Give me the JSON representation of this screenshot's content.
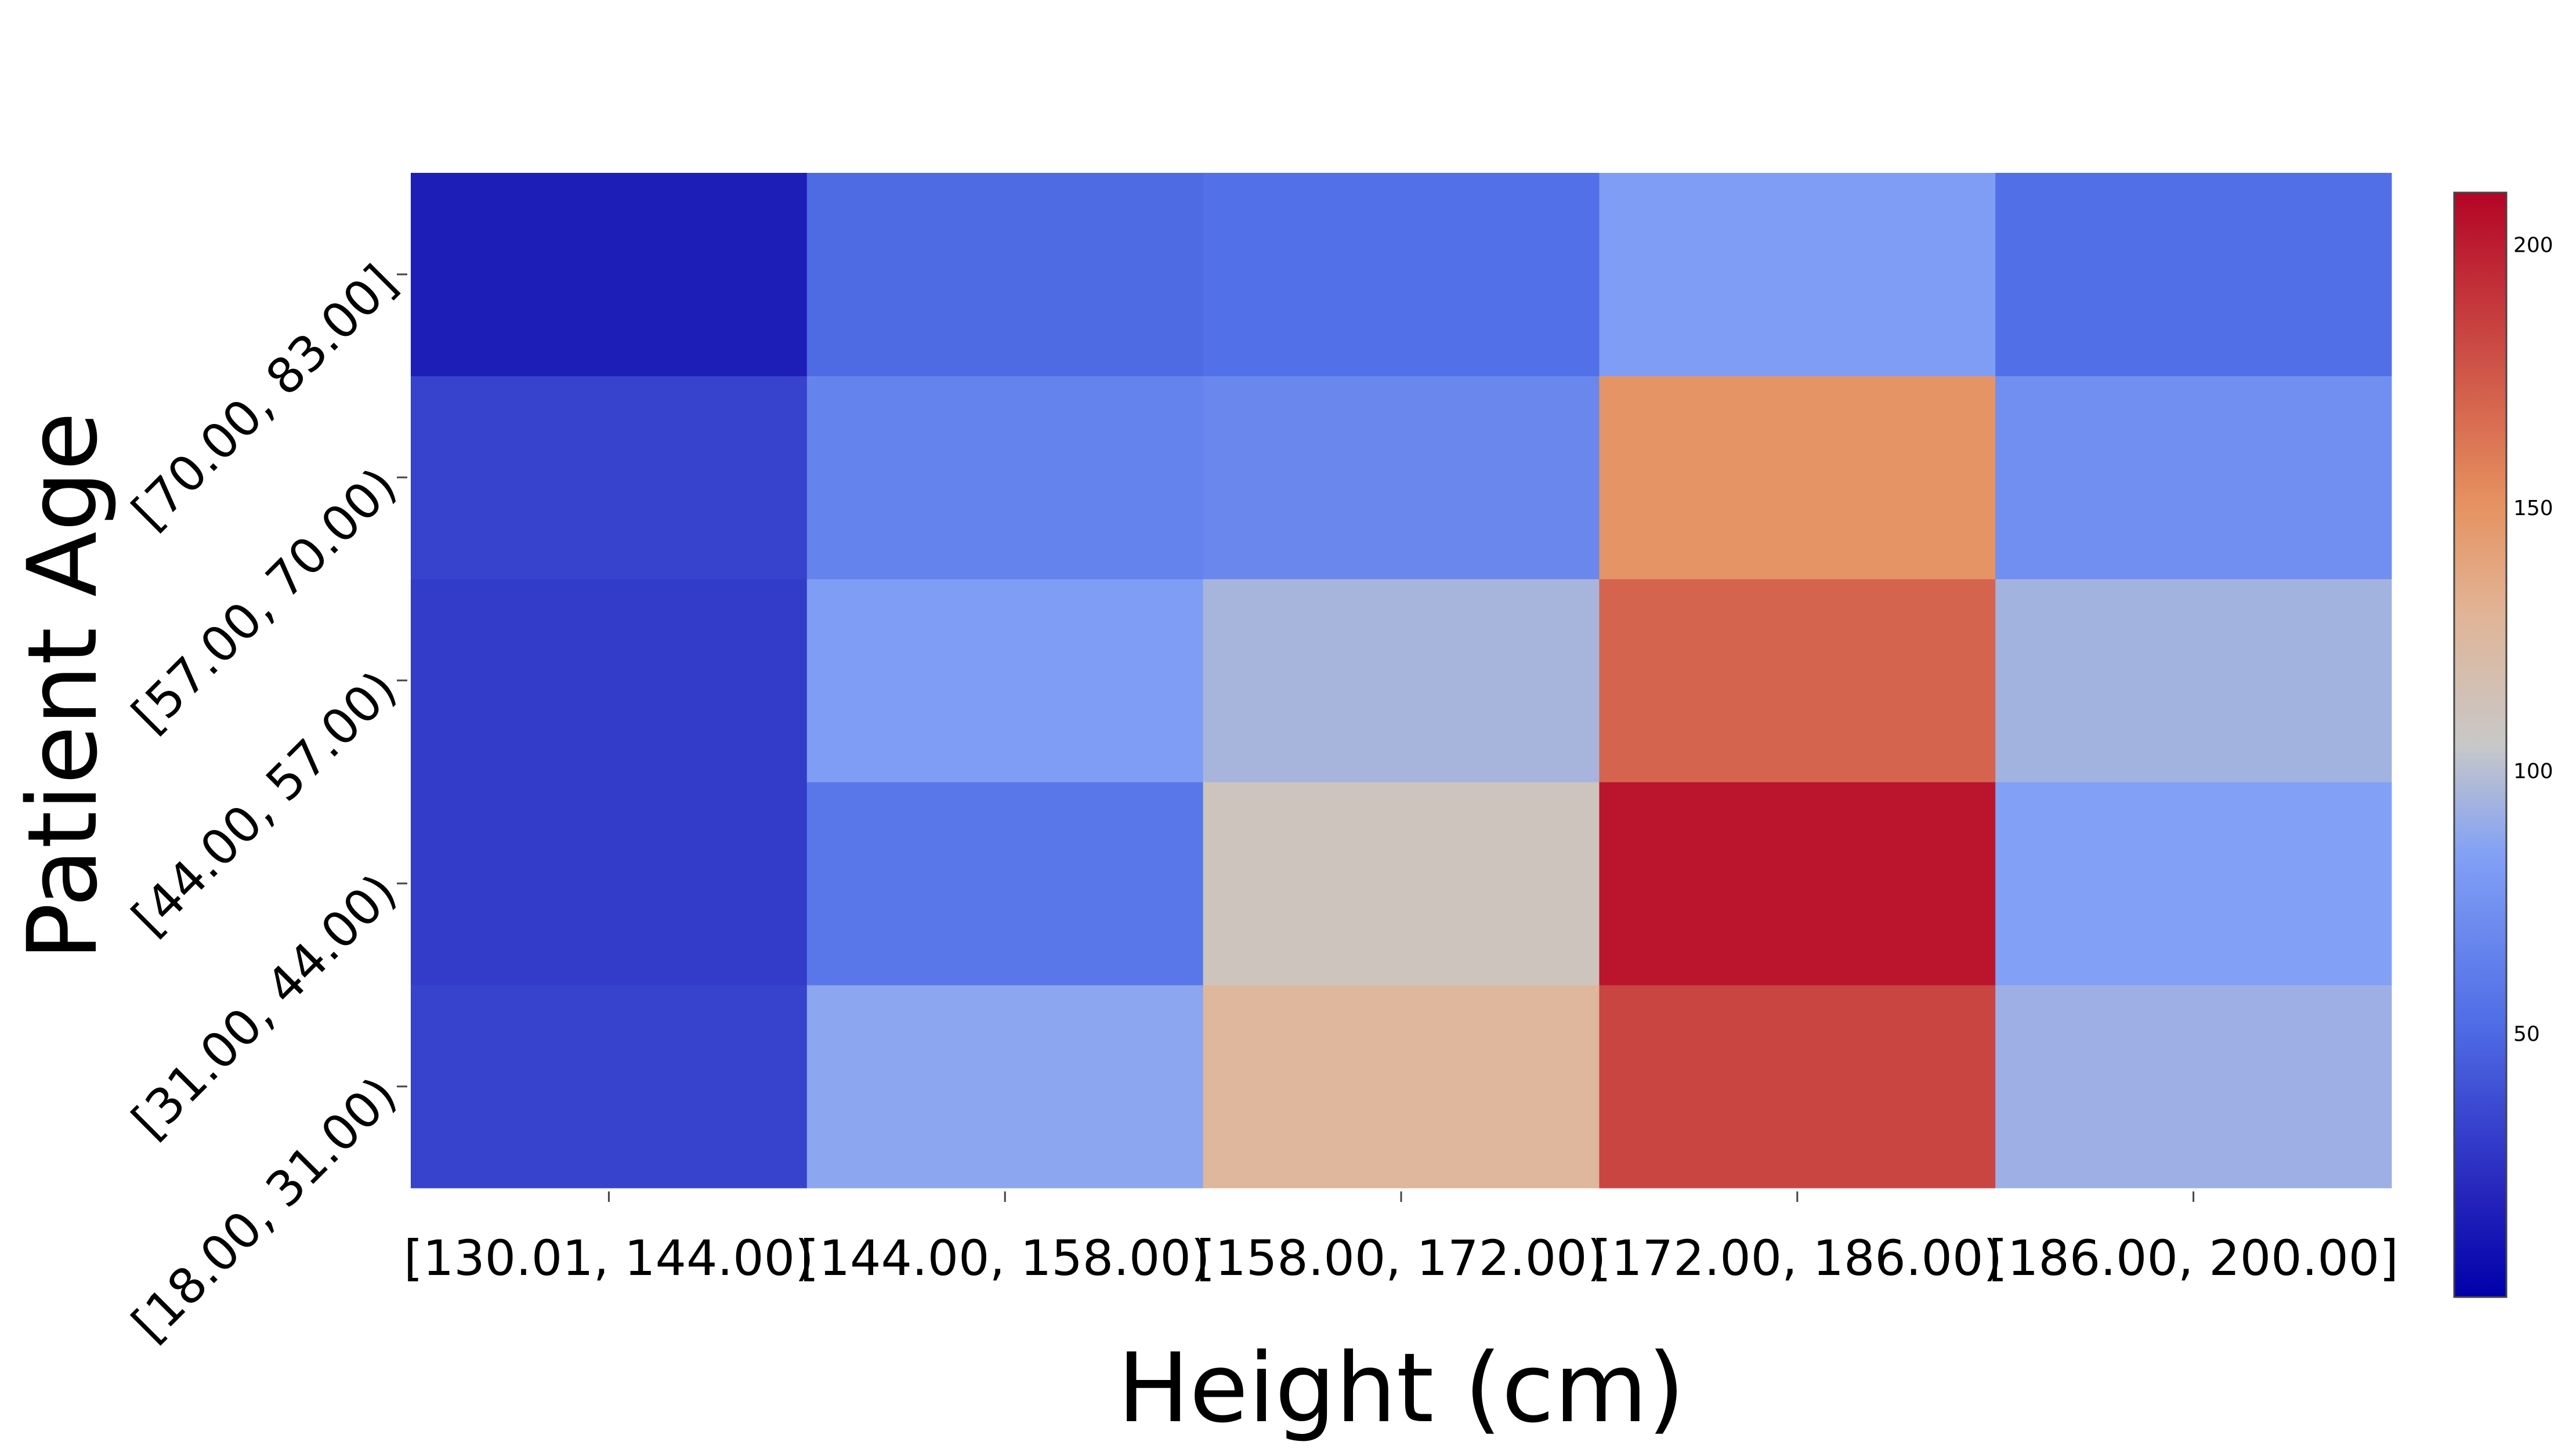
{
  "chart_data": {
    "type": "heatmap",
    "title": "",
    "xlabel": "Height (cm)",
    "ylabel": "Patient Age",
    "x_categories": [
      "[130.01, 144.00)",
      "[144.00, 158.00)",
      "[158.00, 172.00)",
      "[172.00, 186.00)",
      "[186.00, 200.00]"
    ],
    "y_categories": [
      "[18.00, 31.00)",
      "[31.00, 44.00)",
      "[44.00, 57.00)",
      "[57.00, 70.00)",
      "[70.00, 83.00]"
    ],
    "values": [
      [
        33,
        87,
        127,
        183,
        92
      ],
      [
        30,
        58,
        110,
        203,
        84
      ],
      [
        30,
        82,
        95,
        170,
        94
      ],
      [
        33,
        66,
        68,
        149,
        73
      ],
      [
        15,
        51,
        54,
        82,
        53
      ]
    ],
    "colorbar": {
      "range": [
        0,
        210
      ],
      "ticks": [
        50,
        100,
        150,
        200
      ],
      "colorscale": "coolwarm"
    },
    "colors": {
      "low": "#0000aa",
      "mid": "#c8c8c8",
      "high": "#b40426"
    },
    "grid": false,
    "legend": "colorbar-right"
  }
}
